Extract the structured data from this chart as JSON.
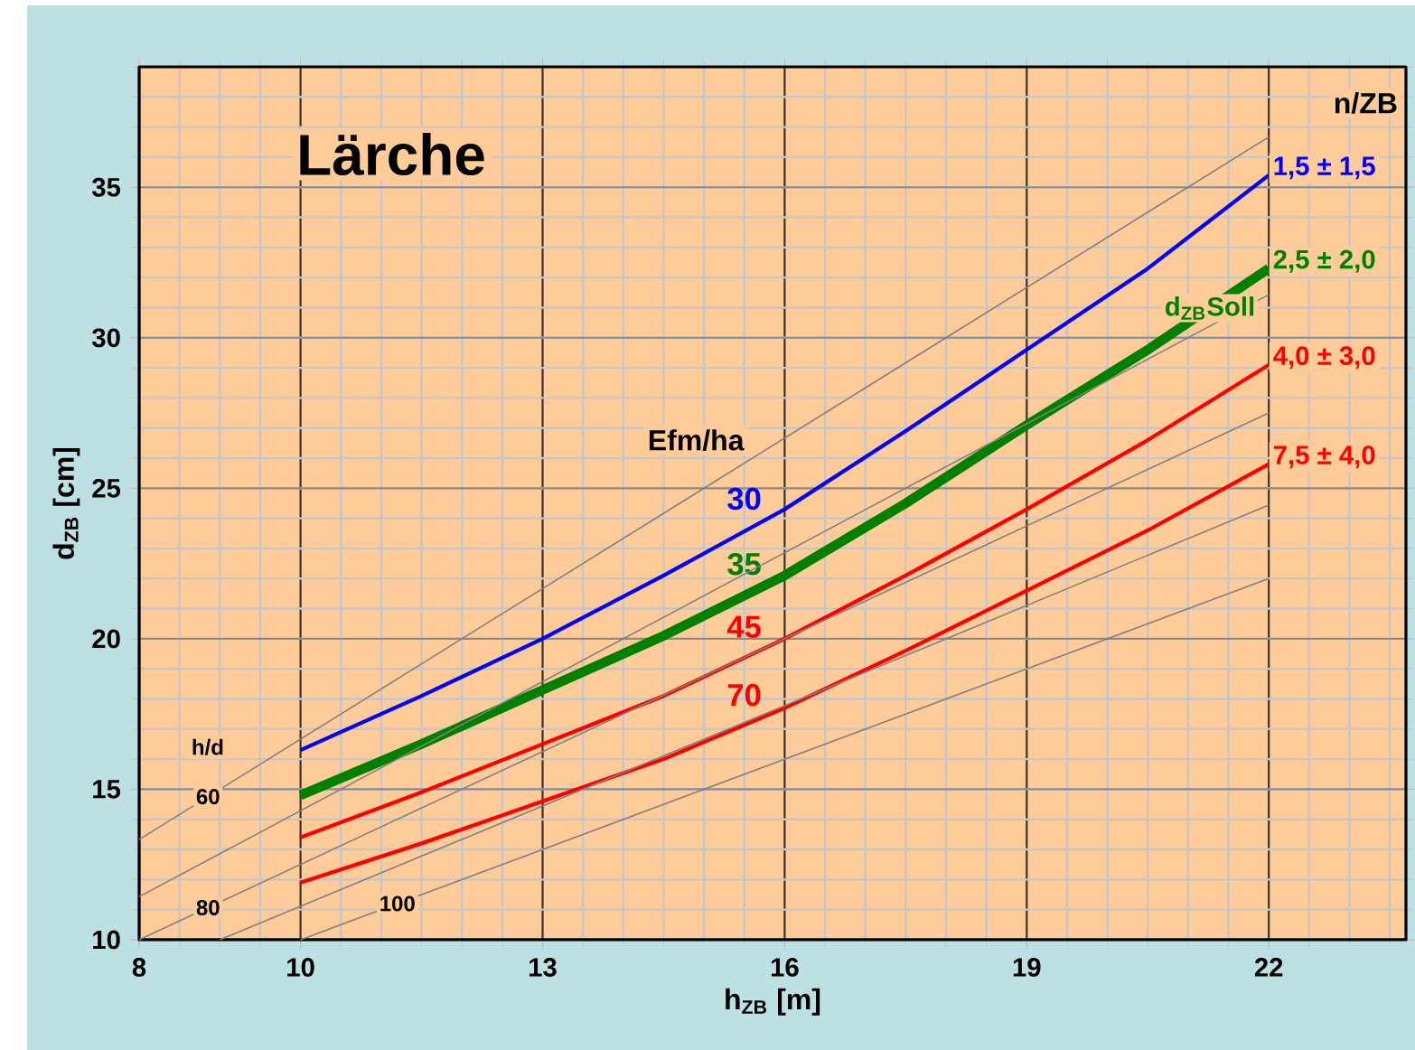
{
  "chart_data": {
    "type": "line",
    "title": "Lärche",
    "xlabel": "h$_{ZB}$ [m]",
    "ylabel": "d$_{ZB}$ [cm]",
    "x": [
      10,
      11.5,
      13,
      14.5,
      16,
      17.5,
      19,
      20.5,
      22
    ],
    "series": [
      {
        "name": "30",
        "color": "#0000ff",
        "values": [
          16.3,
          18.1,
          20.0,
          22.1,
          24.3,
          26.9,
          29.6,
          32.3,
          35.4
        ]
      },
      {
        "name": "35",
        "color": "#008000",
        "values": [
          14.8,
          16.5,
          18.3,
          20.1,
          22.1,
          24.5,
          27.1,
          29.6,
          32.3
        ]
      },
      {
        "name": "45",
        "color": "#ff0000",
        "values": [
          13.4,
          14.9,
          16.5,
          18.1,
          20.0,
          22.1,
          24.3,
          26.6,
          29.1
        ]
      },
      {
        "name": "70",
        "color": "#ff0000",
        "values": [
          11.9,
          13.2,
          14.6,
          16.0,
          17.7,
          19.6,
          21.6,
          23.6,
          25.8
        ]
      },
      {
        "name": "60",
        "color": "#808080",
        "x": [
          8,
          22
        ],
        "values": [
          13.33,
          36.67
        ]
      },
      {
        "color": "#808080",
        "x": [
          8,
          22
        ],
        "values": [
          11.43,
          31.43
        ]
      },
      {
        "name": "80",
        "color": "#808080",
        "x": [
          8,
          22
        ],
        "values": [
          10,
          27.5
        ]
      },
      {
        "color": "#808080",
        "x": [
          9,
          22
        ],
        "values": [
          10,
          24.44
        ]
      },
      {
        "name": "100",
        "color": "#808080",
        "x": [
          10,
          22
        ],
        "values": [
          10,
          22
        ]
      }
    ],
    "xlim": [
      8,
      23.7
    ],
    "ylim": [
      10,
      39
    ],
    "xticks": [
      8,
      10,
      13,
      16,
      19,
      22
    ],
    "yticks": [
      10,
      15,
      20,
      25,
      30,
      35
    ],
    "grid": true,
    "annotations": [
      "Efm/ha",
      "n/ZB",
      "h/d",
      "1,5 ± 1,5",
      "2,5 ± 2,0",
      "4,0 ± 3,0",
      "7,5 ± 4,0",
      "d$_{ZB}$Soll"
    ]
  }
}
